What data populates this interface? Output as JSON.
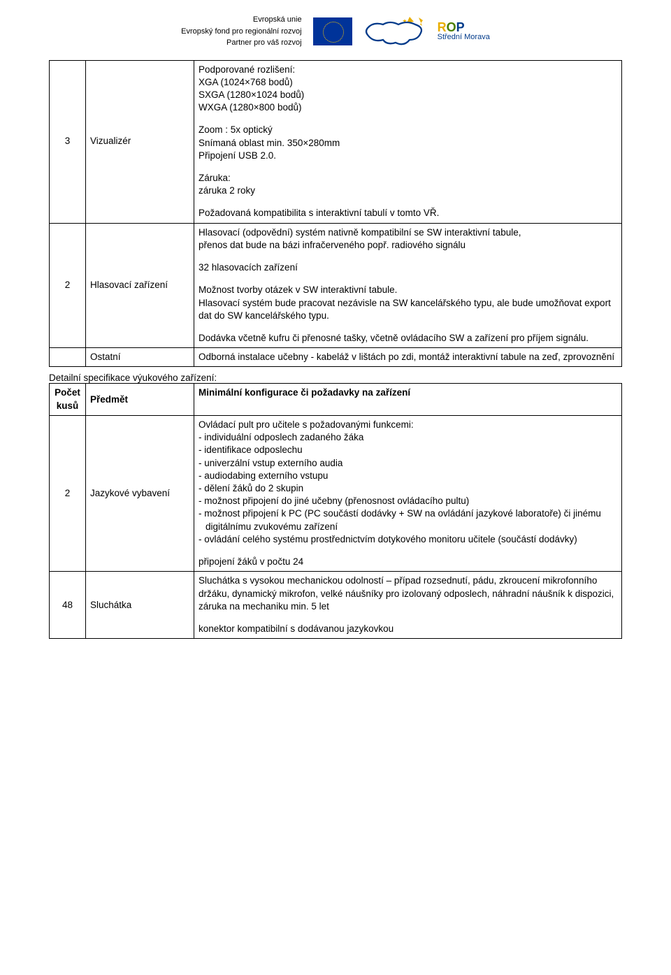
{
  "header": {
    "eu_line1": "Evropská unie",
    "eu_line2": "Evropský fond pro regionální rozvoj",
    "eu_line3": "Partner pro váš rozvoj",
    "rop_top": "ROP",
    "rop_sub": "Střední Morava"
  },
  "colors": {
    "eu_blue": "#003399",
    "eu_gold": "#ffcc00",
    "rop_r": "#e9ae00",
    "rop_o": "#4a7d00",
    "rop_p": "#003a8a",
    "border": "#000000",
    "bg": "#ffffff",
    "text": "#000000"
  },
  "table1": {
    "rows": [
      {
        "qty": "3",
        "item": "Vizualizér",
        "desc_blocks": [
          "Podporované rozlišení:\nXGA (1024×768 bodů)\nSXGA (1280×1024 bodů)\nWXGA (1280×800 bodů)",
          "Zoom : 5x optický\nSnímaná oblast min. 350×280mm\nPřipojení USB 2.0.",
          "Záruka:\nzáruka 2 roky",
          "Požadovaná kompatibilita s interaktivní tabulí v tomto VŘ."
        ]
      },
      {
        "qty": "2",
        "item": "Hlasovací zařízení",
        "desc_blocks": [
          "Hlasovací (odpovědní) systém nativně kompatibilní se SW interaktivní tabule,\npřenos dat bude na bázi infračerveného popř. radiového signálu",
          "32 hlasovacích zařízení",
          "Možnost tvorby otázek v SW interaktivní tabule.\nHlasovací systém bude pracovat nezávisle na SW kancelářského typu, ale bude umožňovat export dat do SW kancelářského typu.",
          "Dodávka včetně kufru či přenosné tašky, včetně ovládacího SW a zařízení pro příjem signálu."
        ]
      },
      {
        "qty": "",
        "item": "Ostatní",
        "desc_blocks": [
          "Odborná  instalace učebny - kabeláž v lištách po zdi, montáž interaktivní tabule na zeď, zprovoznění"
        ]
      }
    ]
  },
  "section2_caption": "Detailní specifikace výukového zařízení:",
  "table2": {
    "headers": {
      "qty": "Počet kusů",
      "item": "Předmět",
      "desc": "Minimální konfigurace či požadavky na zařízení"
    },
    "rows": [
      {
        "qty": "2",
        "item": "Jazykové vybavení",
        "intro": "Ovládací pult pro učitele s požadovanými funkcemi:",
        "bullets": [
          "individuální odposlech zadaného žáka",
          "identifikace odposlechu",
          "univerzální vstup externího audia",
          "audiodabing externího vstupu",
          "dělení žáků do 2 skupin",
          "možnost připojení do jiné učebny (přenosnost ovládacího pultu)",
          "možnost připojení k PC (PC součástí dodávky + SW na ovládání jazykové laboratoře) či jinému digitálnímu zvukovému zařízení",
          "ovládání celého systému prostřednictvím dotykového monitoru učitele (součástí dodávky)"
        ],
        "trail": "připojení žáků v počtu 24"
      },
      {
        "qty": "48",
        "item": "Sluchátka",
        "desc_blocks": [
          "Sluchátka s vysokou mechanickou odolností – případ rozsednutí, pádu, zkroucení mikrofonního držáku, dynamický mikrofon, velké náušníky pro izolovaný odposlech, náhradní náušník k dispozici, záruka na mechaniku min. 5 let",
          "konektor kompatibilní s dodávanou jazykovkou"
        ]
      }
    ]
  }
}
